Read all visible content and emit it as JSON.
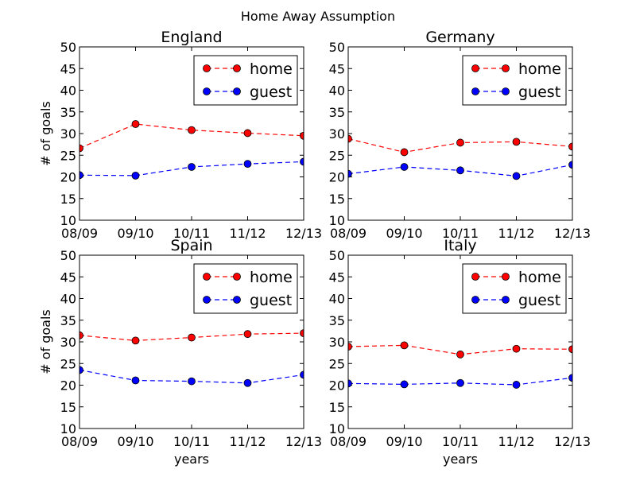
{
  "figure": {
    "suptitle": "Home Away Assumption"
  },
  "colors": {
    "home": "#ff0000",
    "guest": "#0000ff"
  },
  "chart_data": [
    {
      "type": "line",
      "title": "England",
      "xlabel": "",
      "ylabel": "# of goals",
      "categories": [
        "08/09",
        "09/10",
        "10/11",
        "11/12",
        "12/13"
      ],
      "ylim": [
        10,
        50
      ],
      "yticks": [
        10,
        15,
        20,
        25,
        30,
        35,
        40,
        45,
        50
      ],
      "legend_position": "upper right",
      "series": [
        {
          "name": "home",
          "color": "#ff0000",
          "values": [
            26.6,
            32.2,
            30.8,
            30.1,
            29.5
          ]
        },
        {
          "name": "guest",
          "color": "#0000ff",
          "values": [
            20.4,
            20.3,
            22.3,
            23.0,
            23.5
          ]
        }
      ]
    },
    {
      "type": "line",
      "title": "Germany",
      "xlabel": "",
      "ylabel": "",
      "categories": [
        "08/09",
        "09/10",
        "10/11",
        "11/12",
        "12/13"
      ],
      "ylim": [
        10,
        50
      ],
      "yticks": [
        10,
        15,
        20,
        25,
        30,
        35,
        40,
        45,
        50
      ],
      "legend_position": "upper right",
      "series": [
        {
          "name": "home",
          "color": "#ff0000",
          "values": [
            28.8,
            25.7,
            27.9,
            28.1,
            27.0
          ]
        },
        {
          "name": "guest",
          "color": "#0000ff",
          "values": [
            20.7,
            22.3,
            21.5,
            20.2,
            22.8
          ]
        }
      ]
    },
    {
      "type": "line",
      "title": "Spain",
      "xlabel": "years",
      "ylabel": "# of goals",
      "categories": [
        "08/09",
        "09/10",
        "10/11",
        "11/12",
        "12/13"
      ],
      "ylim": [
        10,
        50
      ],
      "yticks": [
        10,
        15,
        20,
        25,
        30,
        35,
        40,
        45,
        50
      ],
      "legend_position": "upper right",
      "series": [
        {
          "name": "home",
          "color": "#ff0000",
          "values": [
            31.5,
            30.3,
            31.0,
            31.8,
            32.0
          ]
        },
        {
          "name": "guest",
          "color": "#0000ff",
          "values": [
            23.5,
            21.1,
            20.9,
            20.5,
            22.4
          ]
        }
      ]
    },
    {
      "type": "line",
      "title": "Italy",
      "xlabel": "years",
      "ylabel": "",
      "categories": [
        "08/09",
        "09/10",
        "10/11",
        "11/12",
        "12/13"
      ],
      "ylim": [
        10,
        50
      ],
      "yticks": [
        10,
        15,
        20,
        25,
        30,
        35,
        40,
        45,
        50
      ],
      "legend_position": "upper right",
      "series": [
        {
          "name": "home",
          "color": "#ff0000",
          "values": [
            28.9,
            29.2,
            27.1,
            28.4,
            28.3
          ]
        },
        {
          "name": "guest",
          "color": "#0000ff",
          "values": [
            20.4,
            20.2,
            20.5,
            20.1,
            21.7
          ]
        }
      ]
    }
  ]
}
